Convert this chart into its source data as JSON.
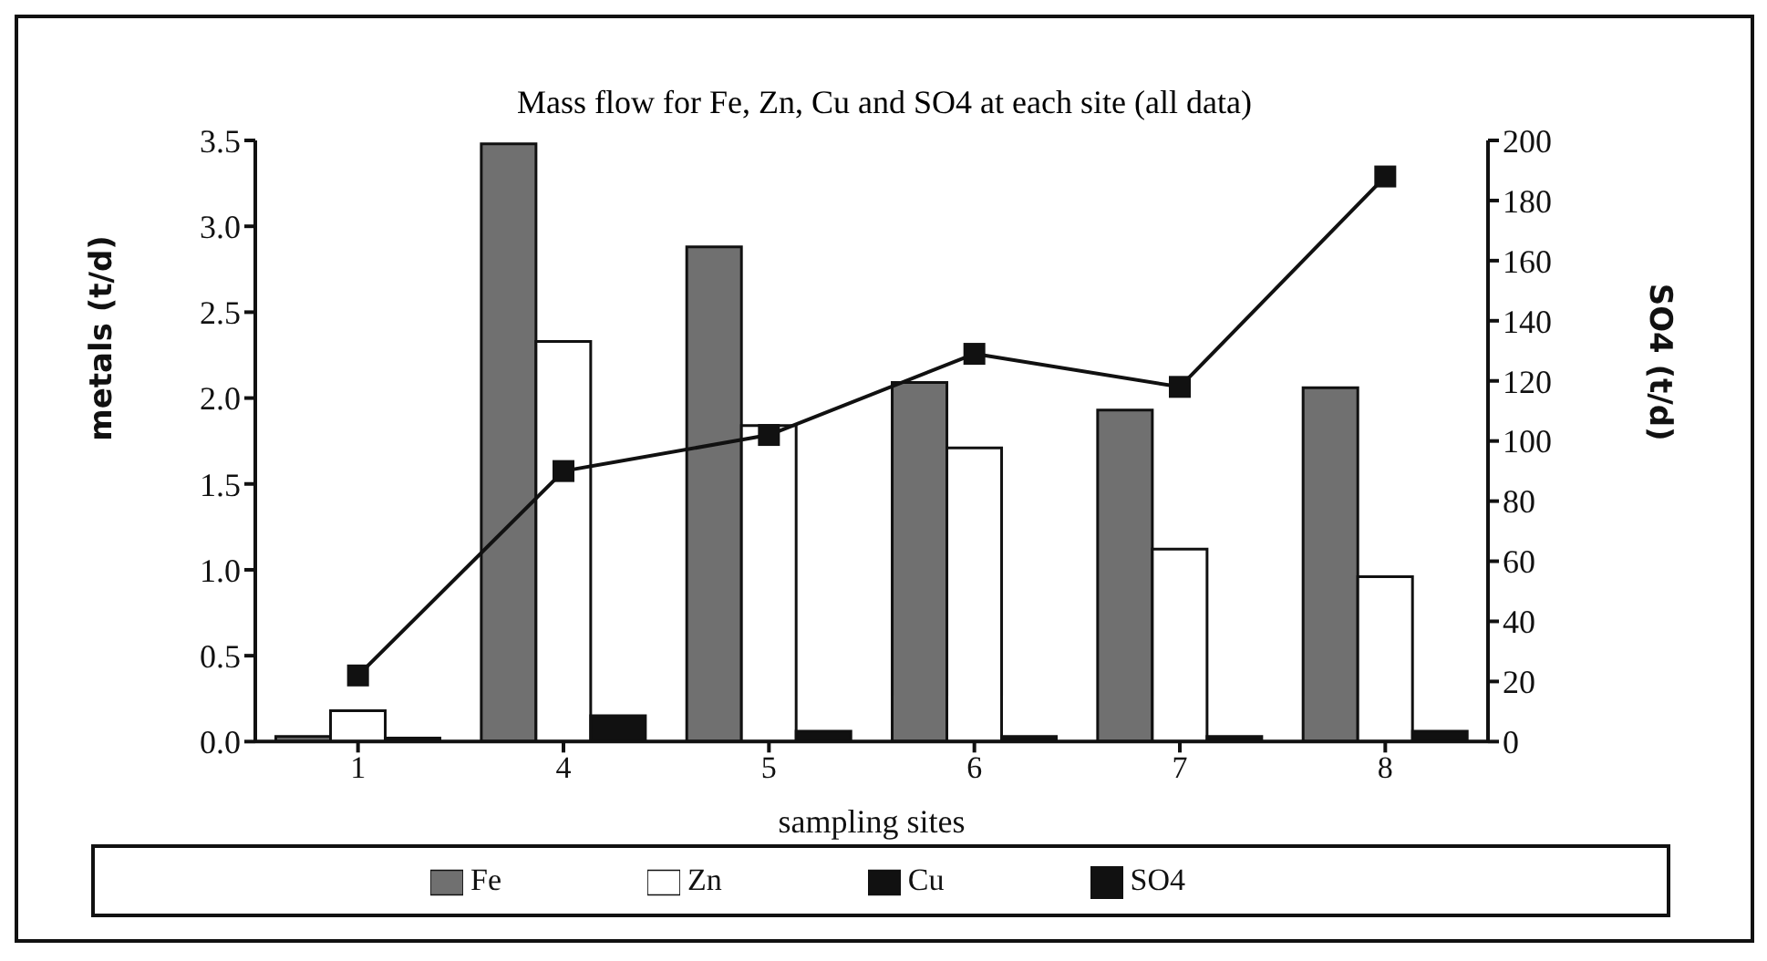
{
  "chart_data": {
    "type": "bar",
    "title": "Mass flow for Fe, Zn, Cu and SO4 at each site (all data)",
    "xlabel": "sampling sites",
    "ylabel": "metals (t/d)",
    "y2label": "SO4 (t/d)",
    "categories": [
      "1",
      "4",
      "5",
      "6",
      "7",
      "8"
    ],
    "series": [
      {
        "name": "Fe",
        "color": "#707070",
        "values": [
          0.03,
          3.48,
          2.88,
          2.09,
          1.93,
          2.06
        ]
      },
      {
        "name": "Zn",
        "color": "#ffffff",
        "values": [
          0.18,
          2.33,
          1.84,
          1.71,
          1.12,
          0.96
        ]
      },
      {
        "name": "Cu",
        "color": "#111111",
        "values": [
          0.02,
          0.15,
          0.06,
          0.03,
          0.03,
          0.06
        ]
      },
      {
        "name": "SO4",
        "type": "line",
        "axis": "y2",
        "color": "#111111",
        "marker": "square",
        "values": [
          22,
          90,
          102,
          129,
          118,
          188
        ]
      }
    ],
    "ylim": [
      0,
      3.5
    ],
    "yticks": [
      {
        "value": 0,
        "label": "0.0"
      },
      0.5,
      {
        "value": 1,
        "label": "1.0"
      },
      1.5,
      {
        "value": 2,
        "label": "2.0"
      },
      2.5,
      {
        "value": 3,
        "label": "3.0"
      },
      3.5
    ],
    "y2lim": [
      0,
      200
    ],
    "y2ticks": [
      0,
      20,
      40,
      60,
      80,
      100,
      120,
      140,
      160,
      180,
      200
    ],
    "legend": "bottom"
  }
}
